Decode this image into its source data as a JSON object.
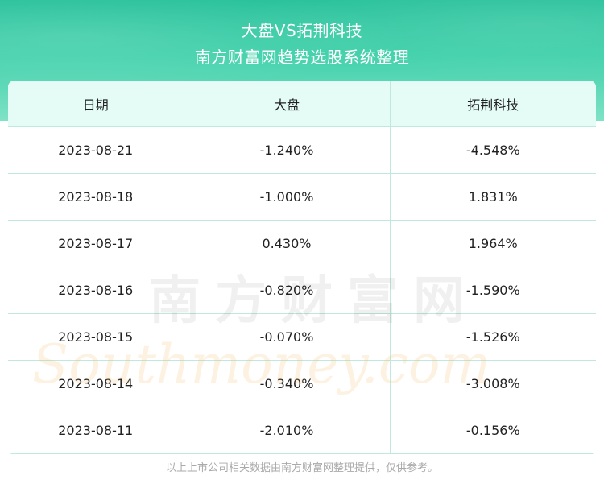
{
  "header": {
    "title": "大盘VS拓荆科技",
    "subtitle": "南方财富网趋势选股系统整理"
  },
  "table": {
    "columns": [
      "日期",
      "大盘",
      "拓荆科技"
    ],
    "rows": [
      [
        "2023-08-21",
        "-1.240%",
        "-4.548%"
      ],
      [
        "2023-08-18",
        "-1.000%",
        "1.831%"
      ],
      [
        "2023-08-17",
        "0.430%",
        "1.964%"
      ],
      [
        "2023-08-16",
        "-0.820%",
        "-1.590%"
      ],
      [
        "2023-08-15",
        "-0.070%",
        "-1.526%"
      ],
      [
        "2023-08-14",
        "-0.340%",
        "-3.008%"
      ],
      [
        "2023-08-11",
        "-2.010%",
        "-0.156%"
      ]
    ]
  },
  "watermark": {
    "cn": "南方财富网",
    "en": "Southmoney.com"
  },
  "footer": {
    "note": "以上上市公司相关数据由南方财富网整理提供，仅供参考。"
  },
  "colors": {
    "banner": "#27c19a",
    "header_row": "#e4fbf6",
    "grid": "#bfe9de"
  }
}
